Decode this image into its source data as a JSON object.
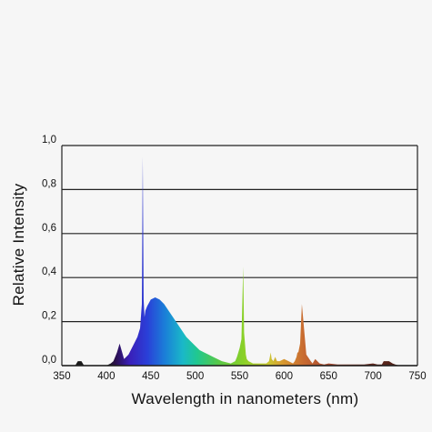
{
  "chart_data": {
    "type": "area",
    "title": "",
    "xlabel": "Wavelength in nanometers (nm)",
    "ylabel": "Relative  Intensity",
    "xlim": [
      350,
      750
    ],
    "ylim": [
      0,
      1
    ],
    "grid": "horizontal",
    "x_ticks": [
      "350",
      "400",
      "450",
      "500",
      "550",
      "600",
      "650",
      "700",
      "750"
    ],
    "y_ticks": [
      "0,0",
      "0,2",
      "0,4",
      "0,6",
      "0,8",
      "1,0"
    ],
    "series": [
      {
        "x": [
          350,
          365,
          368,
          370,
          372,
          375,
          400,
          405,
          408,
          410,
          412,
          415,
          420,
          425,
          430,
          435,
          438,
          440,
          441,
          442,
          443,
          444,
          446,
          450,
          455,
          460,
          465,
          470,
          475,
          480,
          485,
          490,
          495,
          500,
          505,
          510,
          515,
          520,
          525,
          530,
          535,
          540,
          545,
          547,
          550,
          552,
          554,
          555,
          556,
          557,
          558,
          560,
          565,
          570,
          575,
          580,
          583,
          585,
          586,
          588,
          590,
          592,
          595,
          600,
          605,
          610,
          612,
          614,
          615,
          616,
          618,
          620,
          625,
          630,
          632,
          635,
          640,
          645,
          650,
          660,
          670,
          680,
          690,
          700,
          705,
          710,
          712,
          715,
          718,
          720,
          722,
          725,
          730,
          750
        ],
        "y": [
          0,
          0,
          0.02,
          0.02,
          0.02,
          0,
          0,
          0.01,
          0.02,
          0.04,
          0.06,
          0.1,
          0.03,
          0.05,
          0.09,
          0.13,
          0.17,
          0.28,
          0.95,
          0.3,
          0.22,
          0.25,
          0.27,
          0.3,
          0.31,
          0.3,
          0.28,
          0.25,
          0.22,
          0.19,
          0.16,
          0.13,
          0.11,
          0.09,
          0.07,
          0.06,
          0.05,
          0.04,
          0.03,
          0.02,
          0.015,
          0.01,
          0.02,
          0.04,
          0.08,
          0.12,
          0.45,
          0.15,
          0.1,
          0.05,
          0.03,
          0.02,
          0.01,
          0.01,
          0.01,
          0.01,
          0.02,
          0.06,
          0.03,
          0.02,
          0.04,
          0.02,
          0.02,
          0.03,
          0.02,
          0.01,
          0.02,
          0.04,
          0.06,
          0.06,
          0.1,
          0.28,
          0.05,
          0.02,
          0.01,
          0.03,
          0.01,
          0.005,
          0.01,
          0.005,
          0.005,
          0.005,
          0.005,
          0.01,
          0.005,
          0.005,
          0.02,
          0.02,
          0.02,
          0.015,
          0.01,
          0.005,
          0,
          0
        ]
      }
    ]
  }
}
